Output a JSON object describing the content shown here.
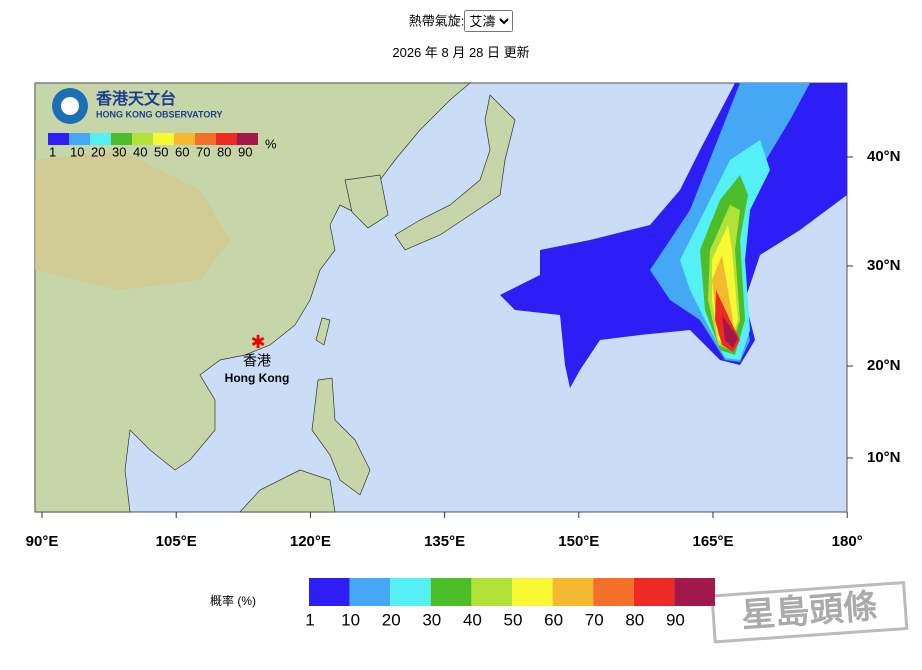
{
  "header": {
    "label": "熱帶氣旋:",
    "selected": "艾濤",
    "updated": "2026 年 8 月 28 日 更新"
  },
  "map": {
    "logo": {
      "name": "香港天文台",
      "name_en": "HONG KONG OBSERVATORY"
    },
    "inset_legend": {
      "labels": [
        "1",
        "10",
        "20",
        "30",
        "40",
        "50",
        "60",
        "70",
        "80",
        "90"
      ],
      "unit": "%"
    },
    "place": {
      "name": "香港",
      "name_en": "Hong Kong"
    },
    "lat_labels": [
      "40°N",
      "30°N",
      "20°N",
      "10°N"
    ],
    "lon_labels": [
      "90°E",
      "105°E",
      "120°E",
      "135°E",
      "150°E",
      "165°E",
      "180°"
    ]
  },
  "legend": {
    "title": "概率 (%)",
    "labels": [
      "1",
      "10",
      "20",
      "30",
      "40",
      "50",
      "60",
      "70",
      "80",
      "90"
    ],
    "colors": [
      "#2d1ef5",
      "#44a8f5",
      "#55f0f5",
      "#4dbd2a",
      "#b0e23a",
      "#f8f833",
      "#f4b930",
      "#f4702a",
      "#ee2a24",
      "#a3184a"
    ]
  },
  "watermark": "星島頭條"
}
